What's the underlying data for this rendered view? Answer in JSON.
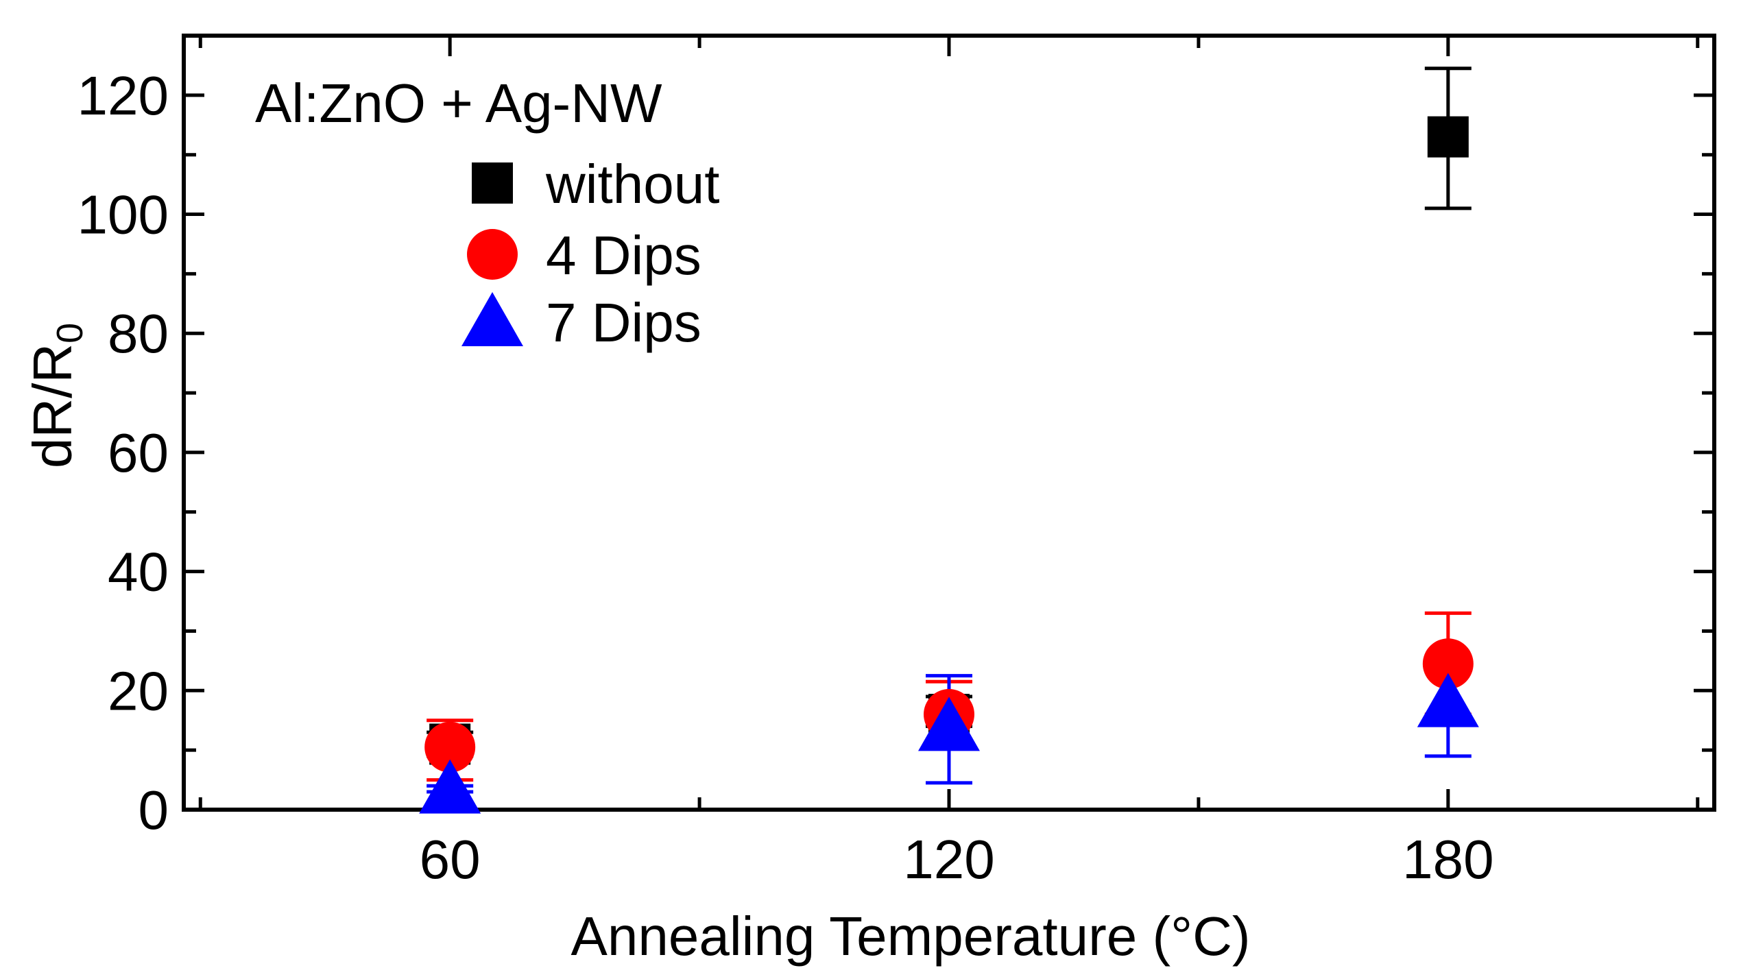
{
  "chart_data": {
    "type": "scatter",
    "title": "",
    "annotation": "Al:ZnO + Ag-NW",
    "xlabel": "Annealing Temperature (°C)",
    "ylabel_main": "dR/R",
    "ylabel_subscript": "0",
    "categories": [
      "60",
      "120",
      "180"
    ],
    "x": [
      60,
      120,
      180
    ],
    "xlim": [
      28,
      212
    ],
    "ylim": [
      0,
      130
    ],
    "yticks": [
      0,
      20,
      40,
      60,
      80,
      100,
      120
    ],
    "ytick_labels": [
      "0",
      "20",
      "40",
      "60",
      "80",
      "100",
      "120"
    ],
    "grid": false,
    "legend_position": "top-left",
    "series": [
      {
        "name": "without",
        "marker": "square",
        "color": "#000000",
        "values": [
          11,
          16,
          113
        ],
        "error_low": [
          9,
          14,
          101
        ],
        "error_high": [
          13,
          19,
          124.5
        ]
      },
      {
        "name": "4 Dips",
        "marker": "circle",
        "color": "#ff0000",
        "values": [
          10.5,
          16,
          24.5
        ],
        "error_low": [
          5,
          10.5,
          16
        ],
        "error_high": [
          15,
          21.5,
          33
        ]
      },
      {
        "name": "7 Dips",
        "marker": "triangle",
        "color": "#0000ff",
        "values": [
          3.5,
          14,
          18
        ],
        "error_low": [
          3,
          4.5,
          9
        ],
        "error_high": [
          4,
          22.5,
          25
        ]
      }
    ]
  }
}
